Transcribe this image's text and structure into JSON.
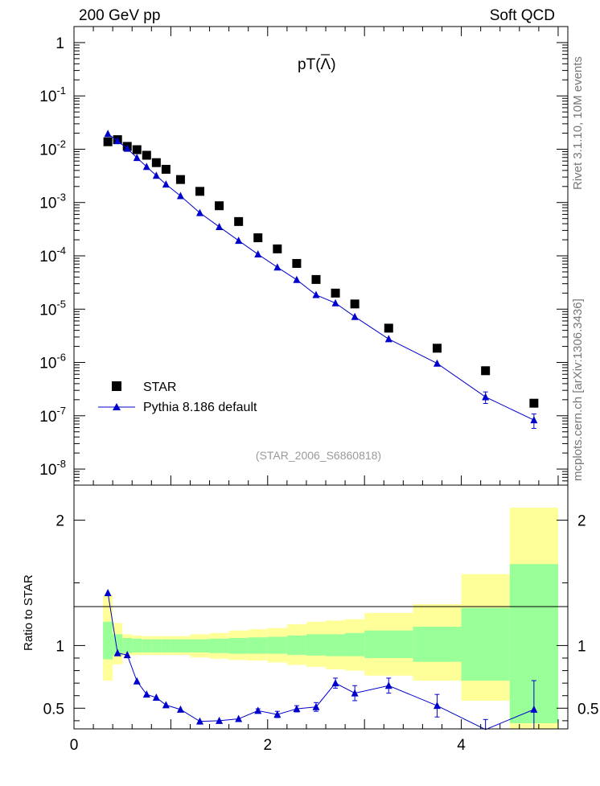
{
  "header": {
    "left": "200 GeV pp",
    "right": "Soft QCD"
  },
  "side_labels": {
    "rivet": "Rivet 3.1.10, 10M events",
    "mcplots": "mcplots.cern.ch [arXiv:1306.3436]"
  },
  "chart_data": [
    {
      "type": "scatter",
      "title": "pT(Λ̄)",
      "title_main": "pT",
      "title_symbol": "Λ",
      "analysis_id": "(STAR_2006_S6860818)",
      "yscale": "log",
      "ylim": [
        5e-09,
        2
      ],
      "xlim": [
        0,
        5.1
      ],
      "ytick_labels": [
        {
          "mant": "10",
          "exp": "-8",
          "value": 1e-08
        },
        {
          "mant": "10",
          "exp": "-7",
          "value": 1e-07
        },
        {
          "mant": "10",
          "exp": "-6",
          "value": 1e-06
        },
        {
          "mant": "10",
          "exp": "-5",
          "value": 1e-05
        },
        {
          "mant": "10",
          "exp": "-4",
          "value": 0.0001
        },
        {
          "mant": "10",
          "exp": "-3",
          "value": 0.001
        },
        {
          "mant": "10",
          "exp": "-2",
          "value": 0.01
        },
        {
          "mant": "10",
          "exp": "-1",
          "value": 0.1
        },
        {
          "mant": "1",
          "exp": "",
          "value": 1
        }
      ],
      "legend_position": "bottom-left",
      "series": [
        {
          "name": "STAR",
          "marker": "square",
          "color": "#000000",
          "x": [
            0.35,
            0.45,
            0.55,
            0.65,
            0.75,
            0.85,
            0.95,
            1.1,
            1.3,
            1.5,
            1.7,
            1.9,
            2.1,
            2.3,
            2.5,
            2.7,
            2.9,
            3.25,
            3.75,
            4.25,
            4.75
          ],
          "y": [
            0.0138,
            0.0151,
            0.0113,
            0.0098,
            0.0077,
            0.0056,
            0.0042,
            0.0027,
            0.00162,
            0.00087,
            0.00044,
            0.000218,
            0.000135,
            7.2e-05,
            3.6e-05,
            2e-05,
            1.25e-05,
            4.4e-06,
            1.85e-06,
            7e-07,
            1.72e-07
          ]
        },
        {
          "name": "Pythia 8.186 default",
          "marker": "triangle",
          "color": "#0000cc",
          "x": [
            0.35,
            0.45,
            0.55,
            0.65,
            0.75,
            0.85,
            0.95,
            1.1,
            1.3,
            1.5,
            1.7,
            1.9,
            2.1,
            2.3,
            2.5,
            2.7,
            2.9,
            3.25,
            3.75,
            4.25,
            4.75
          ],
          "y": [
            0.0195,
            0.0143,
            0.0103,
            0.0069,
            0.0047,
            0.0032,
            0.00219,
            0.00133,
            0.00064,
            0.00035,
            0.000193,
            0.000107,
            6.1e-05,
            3.55e-05,
            1.85e-05,
            1.3e-05,
            7.2e-06,
            2.75e-06,
            9.6e-07,
            2.25e-07,
            8.3e-08
          ],
          "yerr_low": [
            0,
            0,
            0,
            0,
            0,
            0,
            0,
            0,
            0,
            0,
            0,
            0,
            0,
            0,
            0,
            0,
            0,
            0,
            0,
            5.5e-08,
            2.5e-08
          ],
          "yerr_high": [
            0,
            0,
            0,
            0,
            0,
            0,
            0,
            0,
            0,
            0,
            0,
            0,
            0,
            0,
            0,
            0,
            0,
            0,
            0,
            5.5e-08,
            2.5e-08
          ]
        }
      ]
    },
    {
      "type": "scatter",
      "ylabel": "Ratio to STAR",
      "xlim": [
        0,
        5.1
      ],
      "ylim": [
        0.335,
        2.28
      ],
      "xticks": [
        0,
        2,
        4
      ],
      "yticks": [
        0.5,
        1,
        2
      ],
      "reference_line": 1,
      "uncertainty_bands": {
        "bins": [
          [
            0.3,
            0.4
          ],
          [
            0.4,
            0.5
          ],
          [
            0.5,
            0.6
          ],
          [
            0.6,
            0.7
          ],
          [
            0.7,
            0.8
          ],
          [
            0.8,
            0.9
          ],
          [
            0.9,
            1.0
          ],
          [
            1.0,
            1.2
          ],
          [
            1.2,
            1.4
          ],
          [
            1.4,
            1.6
          ],
          [
            1.6,
            1.8
          ],
          [
            1.8,
            2.0
          ],
          [
            2.0,
            2.2
          ],
          [
            2.2,
            2.4
          ],
          [
            2.4,
            2.6
          ],
          [
            2.6,
            2.8
          ],
          [
            2.8,
            3.0
          ],
          [
            3.0,
            3.5
          ],
          [
            3.5,
            4.0
          ],
          [
            4.0,
            4.5
          ],
          [
            4.5,
            5.0
          ]
        ],
        "inner_low": [
          0.89,
          0.92,
          0.94,
          0.945,
          0.945,
          0.945,
          0.945,
          0.945,
          0.945,
          0.94,
          0.935,
          0.935,
          0.935,
          0.925,
          0.92,
          0.915,
          0.915,
          0.9,
          0.87,
          0.72,
          0.38
        ],
        "inner_high": [
          1.19,
          1.09,
          1.06,
          1.055,
          1.05,
          1.05,
          1.05,
          1.05,
          1.05,
          1.055,
          1.06,
          1.065,
          1.07,
          1.08,
          1.09,
          1.09,
          1.1,
          1.12,
          1.15,
          1.3,
          1.65
        ],
        "outer_low": [
          0.72,
          0.85,
          0.92,
          0.925,
          0.925,
          0.925,
          0.925,
          0.925,
          0.905,
          0.895,
          0.885,
          0.88,
          0.865,
          0.845,
          0.83,
          0.81,
          0.8,
          0.76,
          0.72,
          0.56,
          0.3
        ],
        "outer_high": [
          1.4,
          1.18,
          1.09,
          1.08,
          1.075,
          1.075,
          1.075,
          1.075,
          1.09,
          1.1,
          1.12,
          1.13,
          1.14,
          1.17,
          1.19,
          1.2,
          1.21,
          1.26,
          1.33,
          1.57,
          2.1
        ],
        "inner_color": "#99ff99",
        "outer_color": "#ffff99"
      },
      "series": [
        {
          "name": "Pythia 8.186 default",
          "marker": "triangle",
          "color": "#0000cc",
          "x": [
            0.35,
            0.45,
            0.55,
            0.65,
            0.75,
            0.85,
            0.95,
            1.1,
            1.3,
            1.5,
            1.7,
            1.9,
            2.1,
            2.3,
            2.5,
            2.7,
            2.9,
            3.25,
            3.75,
            4.25,
            4.75
          ],
          "y": [
            1.42,
            0.94,
            0.925,
            0.715,
            0.61,
            0.585,
            0.525,
            0.49,
            0.395,
            0.4,
            0.415,
            0.48,
            0.45,
            0.495,
            0.51,
            0.7,
            0.62,
            0.68,
            0.52,
            0.33,
            0.49
          ],
          "yerr_low": [
            0,
            0,
            0,
            0,
            0,
            0,
            0,
            0,
            0,
            0,
            0,
            0.015,
            0.025,
            0.025,
            0.035,
            0.04,
            0.06,
            0.06,
            0.09,
            0.08,
            0.2
          ],
          "yerr_high": [
            0,
            0,
            0,
            0,
            0,
            0,
            0,
            0,
            0,
            0,
            0,
            0.015,
            0.025,
            0.025,
            0.035,
            0.04,
            0.06,
            0.06,
            0.09,
            0.08,
            0.23
          ]
        }
      ]
    }
  ]
}
